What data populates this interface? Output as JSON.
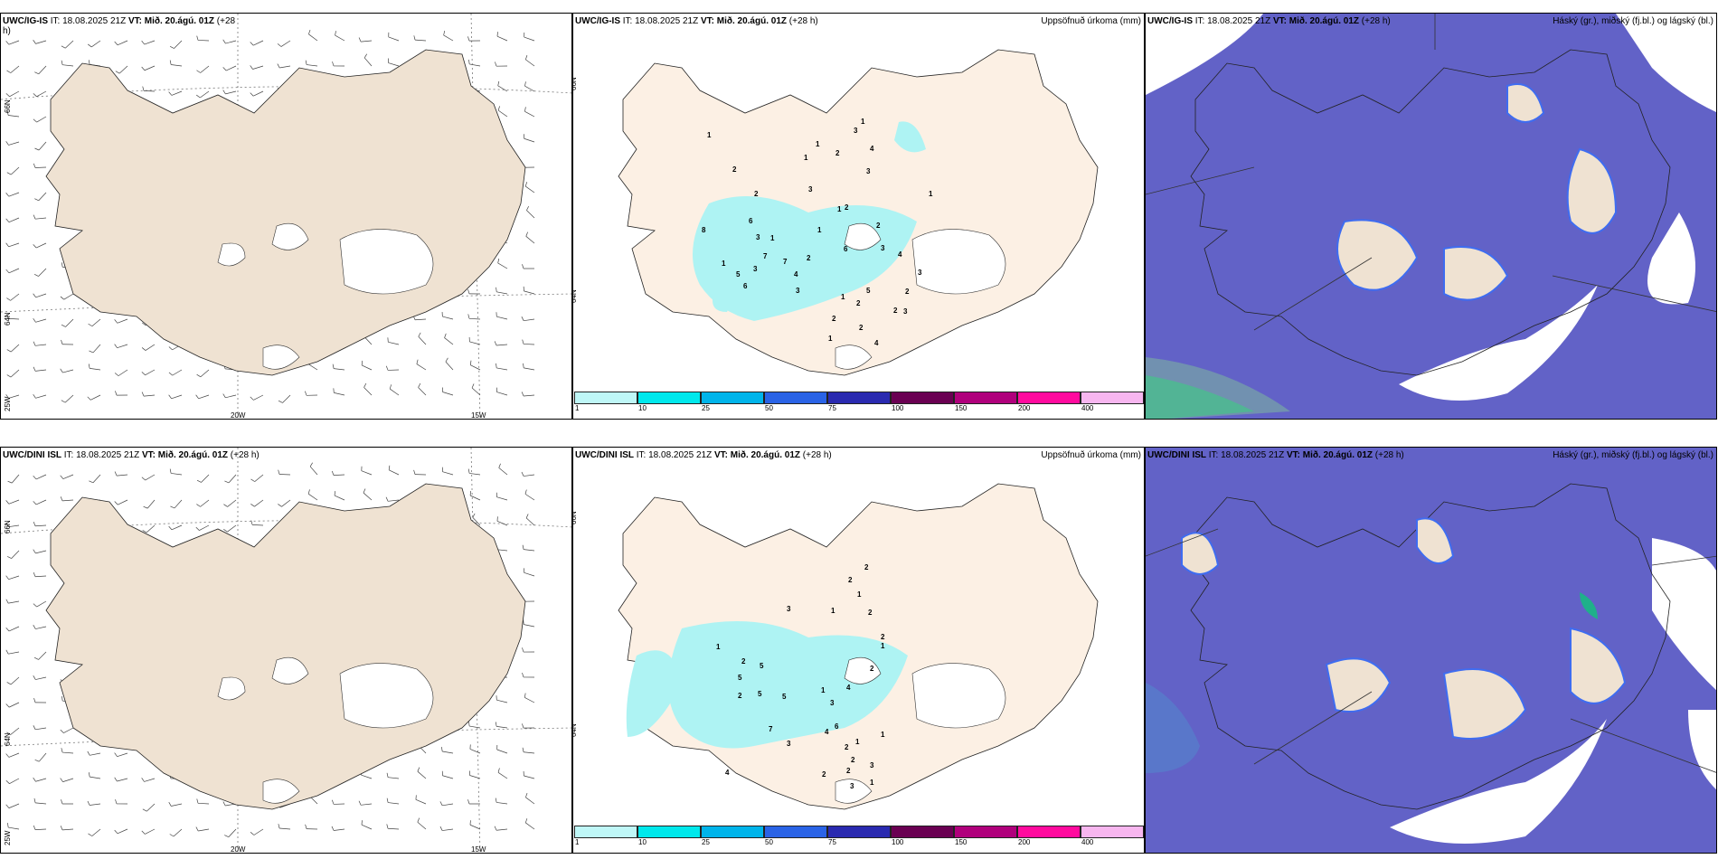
{
  "rows": [
    {
      "wind": {
        "model": "UWC/IG-IS",
        "it": "IT: 18.08.2025 21Z",
        "vt": "VT: Mið. 20.ágú. 01Z",
        "lead": "(+28",
        "wrap": "h)"
      },
      "precip": {
        "model": "UWC/IG-IS",
        "it": "IT: 18.08.2025 21Z",
        "vt": "VT: Mið. 20.ágú. 01Z",
        "lead": "(+28 h)",
        "title": "Uppsöfnuð úrkoma (mm)"
      },
      "cloud": {
        "model": "UWC/IG-IS",
        "it": "IT: 18.08.2025 21Z",
        "vt": "VT: Mið. 20.ágú. 01Z",
        "lead": "(+28 h)",
        "title": "Háský (gr.), miðský (fj.bl.) og lágský (bl.)"
      }
    },
    {
      "wind": {
        "model": "UWC/DINI ISL",
        "it": "IT: 18.08.2025 21Z",
        "vt": "VT: Mið. 20.ágú. 01Z",
        "lead": "(+28 h)",
        "wrap": ""
      },
      "precip": {
        "model": "UWC/DINI ISL",
        "it": "IT: 18.08.2025 21Z",
        "vt": "VT: Mið. 20.ágú. 01Z",
        "lead": "(+28 h)",
        "title": "Uppsöfnuð úrkoma (mm)"
      },
      "cloud": {
        "model": "UWC/DINI ISL",
        "it": "IT: 18.08.2025 21Z",
        "vt": "VT: Mið. 20.ágú. 01Z",
        "lead": "(+28 h)",
        "title": "Háský (gr.), miðský (fj.bl.) og lágský (bl.)"
      }
    }
  ],
  "axis_labels": {
    "lat66": "66N",
    "lat64": "64N",
    "lon25": "25W",
    "lon20": "20W",
    "lon15": "15W"
  },
  "colorbar": {
    "ticks": [
      "1",
      "10",
      "25",
      "50",
      "75",
      "100",
      "150",
      "200",
      "400"
    ],
    "colors": [
      "#bff7f7",
      "#00e8ec",
      "#00b4ea",
      "#2a63e6",
      "#2a2ab0",
      "#6a0052",
      "#b0007c",
      "#ff0a9e",
      "#f7b6ef"
    ]
  },
  "colors": {
    "land": "#efe2d2",
    "land_precip": "#fcf0e4",
    "precip_light": "#aef3f3",
    "cloud_mid": "#6262c7",
    "cloud_edge": "#3f6cf0",
    "cloud_high": "#1fb08a"
  },
  "precip_numbers": [
    [
      "1",
      "1",
      "3",
      "1",
      "4",
      "2",
      "1",
      "2",
      "3",
      "3",
      "1",
      "2",
      "2",
      "1",
      "1",
      "8",
      "6",
      "3",
      "1",
      "2",
      "3",
      "7",
      "6",
      "5",
      "1",
      "7",
      "6",
      "3",
      "4",
      "5",
      "2",
      "2",
      "3",
      "2",
      "4",
      "3",
      "2",
      "2",
      "1",
      "1",
      "2",
      "3",
      "4"
    ],
    [
      "2",
      "1",
      "2",
      "3",
      "1",
      "2",
      "1",
      "2",
      "2",
      "1",
      "2",
      "5",
      "5",
      "2",
      "7",
      "4",
      "3",
      "6",
      "4",
      "4",
      "3",
      "5",
      "2",
      "3",
      "2",
      "1",
      "2",
      "5",
      "1",
      "3",
      "1",
      "1",
      "2"
    ]
  ]
}
